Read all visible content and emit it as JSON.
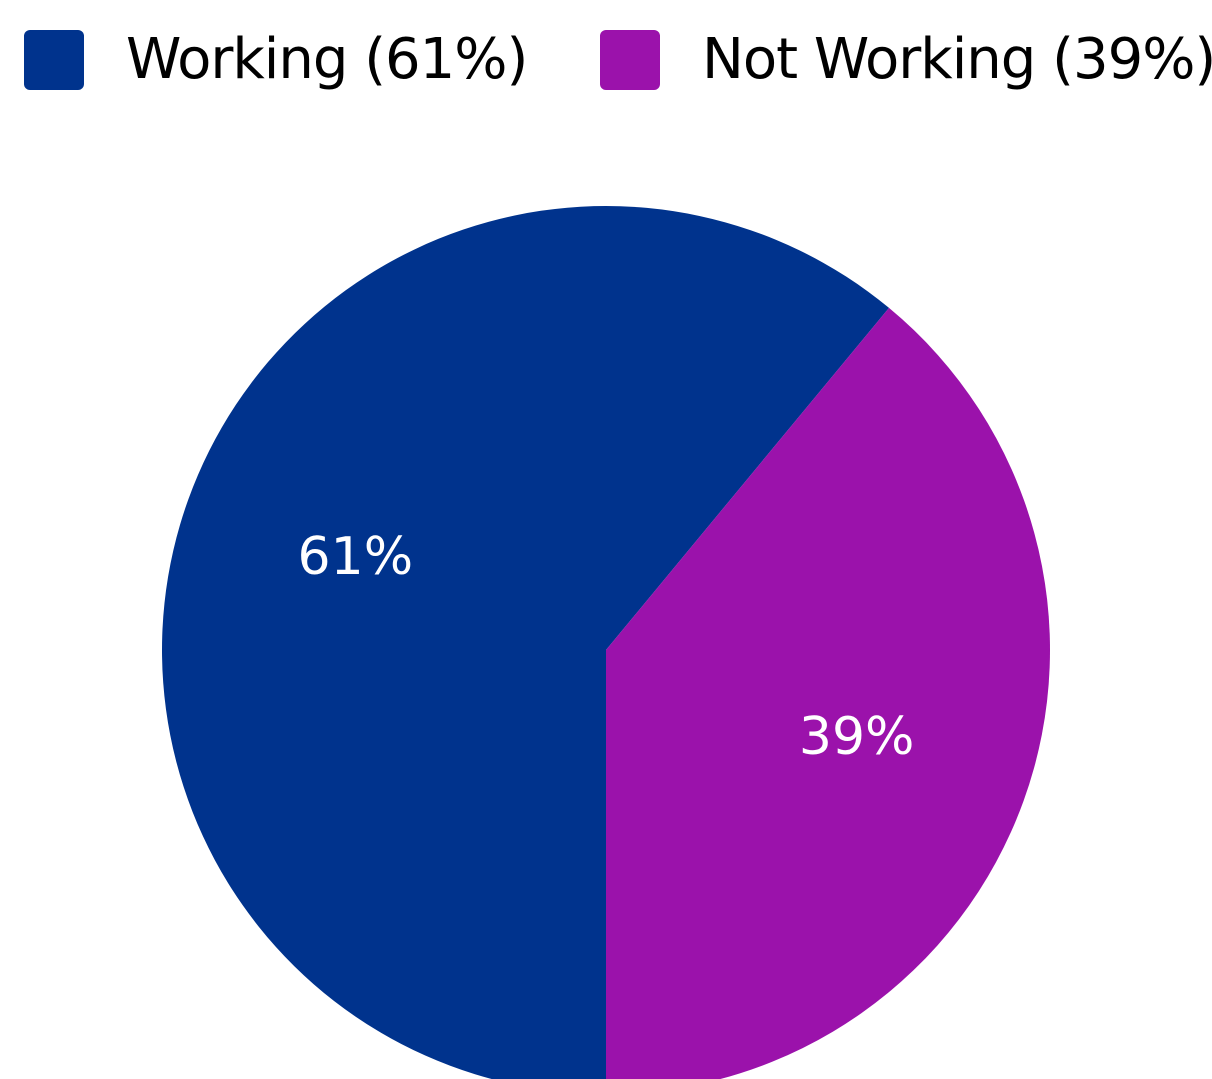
{
  "chart_data": {
    "type": "pie",
    "categories": [
      "Working",
      "Not Working"
    ],
    "values": [
      61,
      39
    ],
    "unit": "%",
    "colors": [
      "#00338d",
      "#9b12ab"
    ],
    "legend": {
      "placement": "top",
      "entries": [
        "Working (61%)",
        "Not Working (39%)"
      ]
    },
    "data_labels": [
      "61%",
      "39%"
    ]
  }
}
